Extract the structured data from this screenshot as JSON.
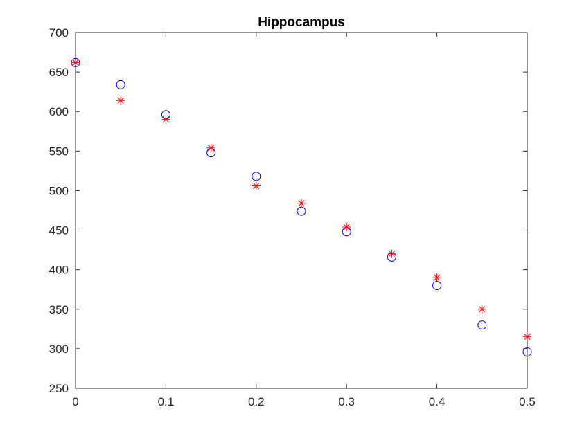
{
  "chart_data": {
    "type": "scatter",
    "title": "Hippocampus",
    "xlabel": "",
    "ylabel": "",
    "xlim": [
      0,
      0.5
    ],
    "ylim": [
      250,
      700
    ],
    "xticks": [
      0,
      0.1,
      0.2,
      0.3,
      0.4,
      0.5
    ],
    "xtick_labels": [
      "0",
      "0.1",
      "0.2",
      "0.3",
      "0.4",
      "0.5"
    ],
    "yticks": [
      250,
      300,
      350,
      400,
      450,
      500,
      550,
      600,
      650,
      700
    ],
    "ytick_labels": [
      "250",
      "300",
      "350",
      "400",
      "450",
      "500",
      "550",
      "600",
      "650",
      "700"
    ],
    "grid": false,
    "legend": "none",
    "series": [
      {
        "marker": "circle",
        "color": "#0000ff",
        "x": [
          0,
          0.05,
          0.1,
          0.15,
          0.2,
          0.25,
          0.3,
          0.35,
          0.4,
          0.45,
          0.5
        ],
        "y": [
          662,
          634,
          596,
          548,
          518,
          474,
          448,
          416,
          380,
          330,
          296
        ]
      },
      {
        "marker": "asterisk",
        "color": "#ff0000",
        "x": [
          0,
          0.05,
          0.1,
          0.15,
          0.2,
          0.25,
          0.3,
          0.35,
          0.4,
          0.45,
          0.5
        ],
        "y": [
          662,
          614,
          590,
          554,
          506,
          484,
          454,
          420,
          390,
          350,
          315
        ]
      }
    ]
  }
}
